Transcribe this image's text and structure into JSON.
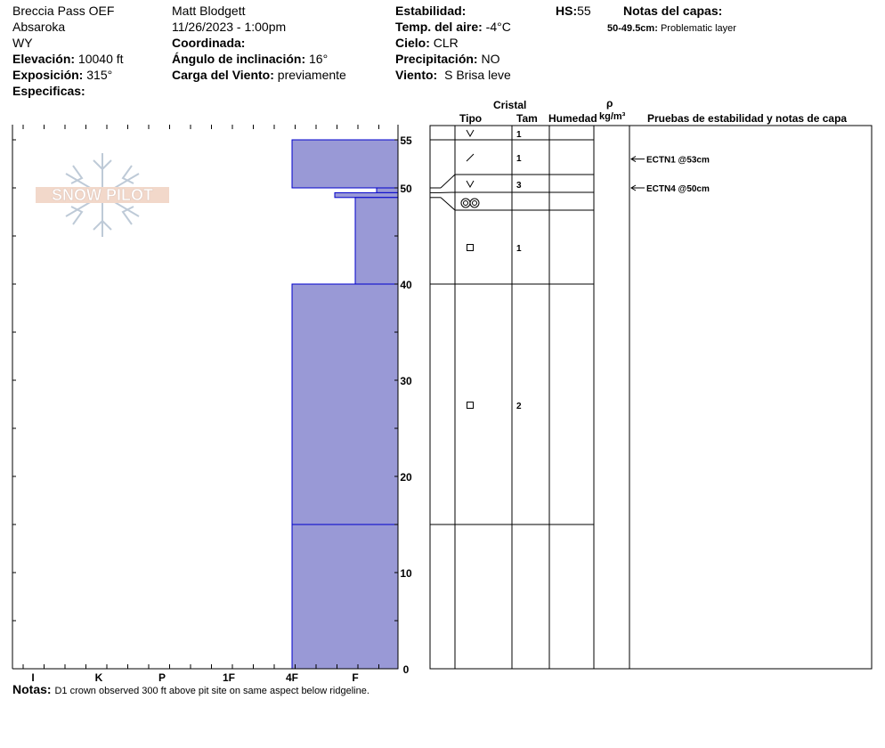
{
  "header": {
    "location": "Breccia Pass OEF",
    "range": "Absaroka",
    "state": "WY",
    "elevation": {
      "label": "Elevación:",
      "value": "10040 ft"
    },
    "aspect": {
      "label": "Exposición:",
      "value": "315°"
    },
    "specifics": {
      "label": "Especificas:",
      "value": ""
    },
    "observer": "Matt Blodgett",
    "datetime": "11/26/2023 - 1:00pm",
    "coordinate": {
      "label": "Coordinada:",
      "value": ""
    },
    "slope": {
      "label": "Ángulo de inclinación:",
      "value": "16°"
    },
    "wind_loading": {
      "label": "Carga del Viento:",
      "value": "previamente"
    },
    "stability": {
      "label": "Estabilidad:",
      "value": ""
    },
    "air_temp": {
      "label": "Temp. del aire:",
      "value": "-4°C"
    },
    "sky": {
      "label": "Cielo:",
      "value": "CLR"
    },
    "precip": {
      "label": "Precipitación:",
      "value": "NO"
    },
    "wind": {
      "label": "Viento:",
      "value": "S Brisa leve"
    },
    "hs": {
      "label": "HS:",
      "value": "55"
    },
    "layer_notes": {
      "label": "Notas del capas:",
      "range": "50-49.5cm:",
      "text": "Problematic layer"
    }
  },
  "logo_text": "SNOW PILOT",
  "columns": {
    "crystal": "Cristal",
    "type": "Tipo",
    "size": "Tam",
    "moisture": "Humedad",
    "rho": "ρ",
    "density_unit": "kg/m³",
    "tests": "Pruebas de estabilidad y notas de capa"
  },
  "notes": {
    "label": "Notas:",
    "text": "D1 crown observed 300 ft above pit site on same aspect below ridgeline."
  },
  "colors": {
    "hardness_fill": "#9999d6",
    "hardness_stroke": "#0000cc"
  },
  "chart_data": {
    "type": "bar",
    "title": "",
    "y_unit": "cm",
    "ylim": [
      0,
      55
    ],
    "y_ticks": [
      "55",
      "50",
      "40",
      "30",
      "20",
      "10",
      "0"
    ],
    "hardness_scale": [
      "I",
      "K",
      "P",
      "1F",
      "4F",
      "F"
    ],
    "layers": [
      {
        "top": 55,
        "bottom": 50,
        "hardness": "4F",
        "grain": "depth-hoar",
        "size": "1"
      },
      {
        "top": 50,
        "bottom": 49.5,
        "hardness": "F+",
        "grain": "faceted",
        "size": "1"
      },
      {
        "top": 49.5,
        "bottom": 49,
        "hardness": "F-",
        "grain": "depth-hoar",
        "size": "3"
      },
      {
        "top": 49,
        "bottom": 40,
        "hardness": "F",
        "grain": "melt-forms",
        "size": ""
      },
      {
        "top": 40,
        "bottom": 15,
        "hardness": "4F",
        "grain": "faceted",
        "size": "1"
      },
      {
        "top": 15,
        "bottom": 0,
        "hardness": "4F",
        "grain": "faceted",
        "size": "2"
      }
    ],
    "tests": [
      {
        "depth": 53,
        "label": "ECTN1 @53cm"
      },
      {
        "depth": 50,
        "label": "ECTN4 @50cm"
      }
    ]
  }
}
